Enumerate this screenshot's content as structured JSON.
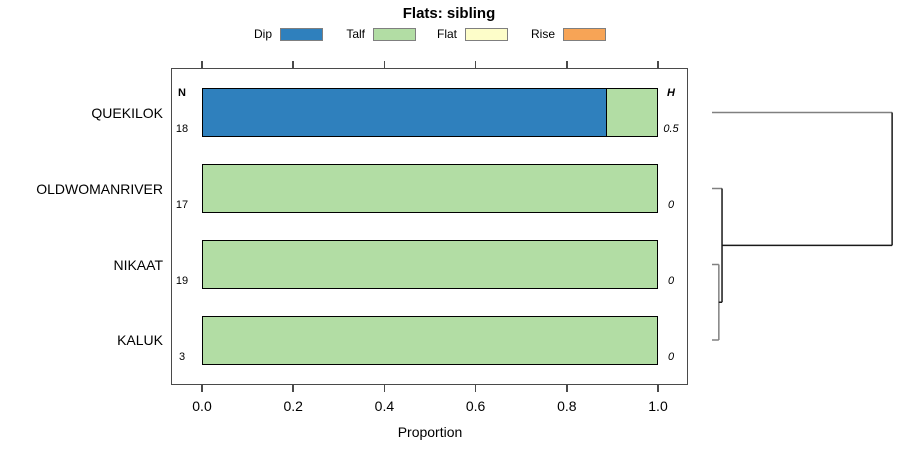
{
  "title": "Flats: sibling",
  "legend": [
    {
      "label": "Dip",
      "color": "#2F80BD"
    },
    {
      "label": "Talf",
      "color": "#B2DDA4"
    },
    {
      "label": "Flat",
      "color": "#FDFDC9"
    },
    {
      "label": "Rise",
      "color": "#F7A456"
    }
  ],
  "chart_data": {
    "type": "bar",
    "orientation": "horizontal",
    "stacked": true,
    "title": "Flats: sibling",
    "xlabel": "Proportion",
    "xlim": [
      0,
      1
    ],
    "xtick_values": [
      0,
      0.2,
      0.4,
      0.6,
      0.8,
      1.0
    ],
    "xtick_labels": [
      "0.0",
      "0.2",
      "0.4",
      "0.6",
      "0.8",
      "1.0"
    ],
    "categories": [
      "QUEKILOK",
      "OLDWOMANRIVER",
      "NIKAAT",
      "KALUK"
    ],
    "n_label": "N",
    "h_label": "H",
    "n_values": [
      "18",
      "17",
      "19",
      "3"
    ],
    "h_values": [
      "0.5",
      "0",
      "0",
      "0"
    ],
    "series": [
      {
        "name": "Dip",
        "color": "#2F80BD",
        "values": [
          0.889,
          0,
          0,
          0
        ]
      },
      {
        "name": "Talf",
        "color": "#B2DDA4",
        "values": [
          0.111,
          1,
          1,
          1
        ]
      },
      {
        "name": "Flat",
        "color": "#FDFDC9",
        "values": [
          0,
          0,
          0,
          0
        ]
      },
      {
        "name": "Rise",
        "color": "#F7A456",
        "values": [
          0,
          0,
          0,
          0
        ]
      }
    ],
    "dendrogram": {
      "leaves": [
        "QUEKILOK",
        "OLDWOMANRIVER",
        "NIKAAT",
        "KALUK"
      ],
      "leaf_stub_color": "#808080",
      "merges": [
        {
          "children": [
            "NIKAAT",
            "KALUK"
          ],
          "height": 0.015,
          "color": "#808080"
        },
        {
          "children": [
            "merge0",
            "OLDWOMANRIVER"
          ],
          "height": 0.022,
          "color": "#1a1a1a"
        },
        {
          "children": [
            "merge1",
            "QUEKILOK"
          ],
          "height": 0.395,
          "color": "#1a1a1a"
        }
      ]
    }
  }
}
